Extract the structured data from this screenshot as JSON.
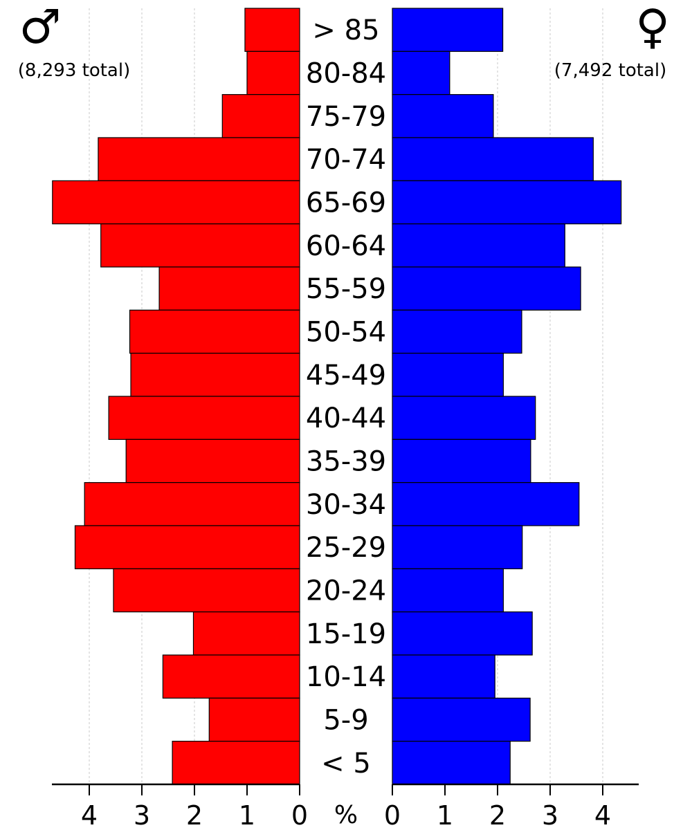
{
  "chart_data": {
    "type": "bar",
    "orientation": "horizontal-pyramid",
    "categories": [
      "> 85",
      "80-84",
      "75-79",
      "70-74",
      "65-69",
      "60-64",
      "55-59",
      "50-54",
      "45-49",
      "40-44",
      "35-39",
      "30-34",
      "25-29",
      "20-24",
      "15-19",
      "10-14",
      "5-9",
      "< 5"
    ],
    "series": [
      {
        "name": "male",
        "color": "#ff0000",
        "symbol": "♂",
        "total_label": "(8,293 total)",
        "values": [
          1.04,
          1.0,
          1.47,
          3.83,
          4.7,
          3.78,
          2.67,
          3.23,
          3.21,
          3.63,
          3.3,
          4.09,
          4.27,
          3.54,
          2.02,
          2.6,
          1.72,
          2.42
        ]
      },
      {
        "name": "female",
        "color": "#0000ff",
        "symbol": "♀",
        "total_label": "(7,492 total)",
        "values": [
          2.1,
          1.09,
          1.92,
          3.82,
          4.35,
          3.28,
          3.58,
          2.46,
          2.11,
          2.72,
          2.63,
          3.55,
          2.47,
          2.11,
          2.66,
          1.95,
          2.62,
          2.24
        ]
      }
    ],
    "x_ticks_left": [
      "4",
      "3",
      "2",
      "1",
      "0"
    ],
    "x_ticks_right": [
      "0",
      "1",
      "2",
      "3",
      "4"
    ],
    "xlabel": "%",
    "xlim": [
      0,
      4.7
    ],
    "grid": "vertical dashed"
  }
}
